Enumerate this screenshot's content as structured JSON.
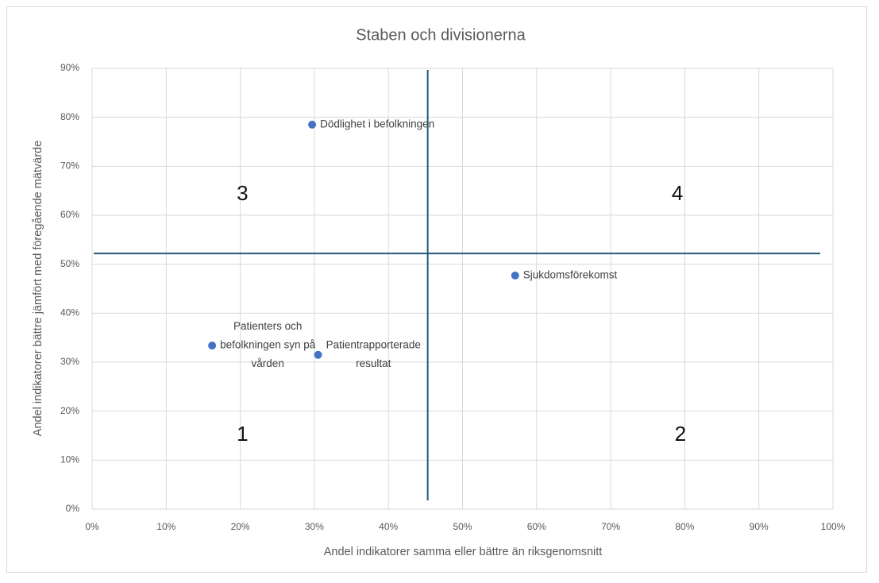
{
  "chart_data": {
    "type": "scatter",
    "title": "Staben och divisionerna",
    "x_label": "Andel indikatorer samma eller bättre än riksgenomsnitt",
    "y_label": "Andel indikatorer bättre jämfört med föregående mätvärde",
    "x": [
      29.7,
      57.1,
      16.2,
      30.5
    ],
    "values": [
      78.5,
      47.7,
      33.4,
      31.5
    ],
    "point_labels": [
      [
        "Dödlighet i befolkningen"
      ],
      [
        "Sjukdomsförekomst"
      ],
      [
        "Patienters och",
        "befolkningen syn på",
        "vården"
      ],
      [
        "Patientrapporterade",
        "resultat"
      ]
    ],
    "color": "#4472c4",
    "xlim": [
      0,
      100
    ],
    "ylim": [
      0,
      90
    ],
    "xticks": [
      {
        "value": 0,
        "label": "0%"
      },
      {
        "value": 10,
        "label": "10%"
      },
      {
        "value": 20,
        "label": "20%"
      },
      {
        "value": 30,
        "label": "30%"
      },
      {
        "value": 40,
        "label": "40%"
      },
      {
        "value": 50,
        "label": "50%"
      },
      {
        "value": 60,
        "label": "60%"
      },
      {
        "value": 70,
        "label": "70%"
      },
      {
        "value": 80,
        "label": "80%"
      },
      {
        "value": 90,
        "label": "90%"
      },
      {
        "value": 100,
        "label": "100%"
      }
    ],
    "yticks": [
      {
        "value": 0,
        "label": "0%"
      },
      {
        "value": 10,
        "label": "10%"
      },
      {
        "value": 20,
        "label": "20%"
      },
      {
        "value": 30,
        "label": "30%"
      },
      {
        "value": 40,
        "label": "40%"
      },
      {
        "value": 50,
        "label": "50%"
      },
      {
        "value": 60,
        "label": "60%"
      },
      {
        "value": 70,
        "label": "70%"
      },
      {
        "value": 80,
        "label": "80%"
      },
      {
        "value": 90,
        "label": "90%"
      }
    ],
    "grid": true,
    "reference_lines": {
      "x": 45.3,
      "y": 52.2,
      "color": "#1f5b7a"
    },
    "annotations": [
      {
        "text": "3",
        "x": 20.3,
        "y": 64.2
      },
      {
        "text": "4",
        "x": 79,
        "y": 64.2
      },
      {
        "text": "1",
        "x": 20.3,
        "y": 15.1
      },
      {
        "text": "2",
        "x": 79.4,
        "y": 15.1
      }
    ]
  }
}
